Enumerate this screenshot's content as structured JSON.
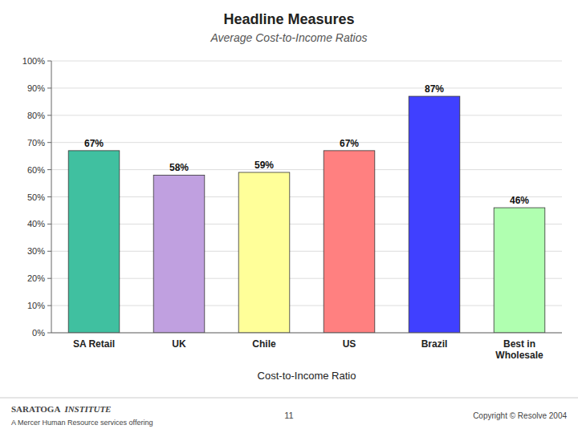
{
  "chart_data": {
    "type": "bar",
    "title": "Headline Measures",
    "subtitle": "Average Cost-to-Income Ratios",
    "categories": [
      "SA Retail",
      "UK",
      "Chile",
      "US",
      "Brazil",
      "Best in\nWholesale"
    ],
    "values": [
      67,
      58,
      59,
      67,
      87,
      46
    ],
    "value_labels": [
      "67%",
      "58%",
      "59%",
      "67%",
      "87%",
      "46%"
    ],
    "colors": [
      "#40C0A0",
      "#C0A0E0",
      "#FFFF99",
      "#FF8080",
      "#4040FF",
      "#B0FFB0"
    ],
    "x_label": "Cost-to-Income Ratio",
    "ylim": [
      0,
      100
    ],
    "yticks": [
      {
        "value": 0,
        "label": "0%"
      },
      {
        "value": 10,
        "label": "10%"
      },
      {
        "value": 20,
        "label": "20%"
      },
      {
        "value": 30,
        "label": "30%"
      },
      {
        "value": 40,
        "label": "40%"
      },
      {
        "value": 50,
        "label": "50%"
      },
      {
        "value": 60,
        "label": "60%"
      },
      {
        "value": 70,
        "label": "70%"
      },
      {
        "value": 80,
        "label": "80%"
      },
      {
        "value": 90,
        "label": "90%"
      },
      {
        "value": 100,
        "label": "100%"
      }
    ],
    "grid": true,
    "data_labels": true,
    "annotations": [
      "SARATOGA",
      "INSTITUTE",
      "A Mercer Human Resource services offering",
      "11",
      "Copyright © Resolve 2004"
    ]
  }
}
